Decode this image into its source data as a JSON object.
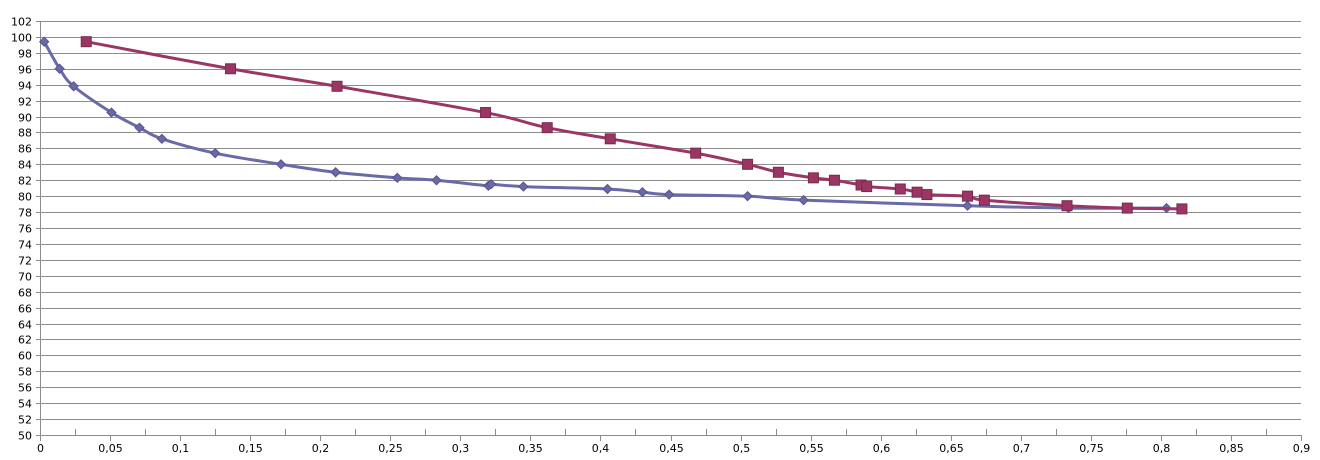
{
  "chart_data": {
    "type": "scatter",
    "title": "",
    "xlabel": "",
    "ylabel": "",
    "xlim": [
      0,
      0.9
    ],
    "ylim": [
      50,
      102
    ],
    "x_ticks": [
      "0",
      "0,05",
      "0,1",
      "0,15",
      "0,2",
      "0,25",
      "0,3",
      "0,35",
      "0,4",
      "0,45",
      "0,5",
      "0,55",
      "0,6",
      "0,65",
      "0,7",
      "0,75",
      "0,8",
      "0,85",
      "0,9"
    ],
    "x_tick_values": [
      0,
      0.05,
      0.1,
      0.15,
      0.2,
      0.25,
      0.3,
      0.35,
      0.4,
      0.45,
      0.5,
      0.55,
      0.6,
      0.65,
      0.7,
      0.75,
      0.8,
      0.85,
      0.9
    ],
    "y_ticks": [
      "50",
      "52",
      "54",
      "56",
      "58",
      "60",
      "62",
      "64",
      "66",
      "68",
      "70",
      "72",
      "74",
      "76",
      "78",
      "80",
      "82",
      "84",
      "86",
      "88",
      "90",
      "92",
      "94",
      "96",
      "98",
      "100",
      "102"
    ],
    "y_tick_values": [
      50,
      52,
      54,
      56,
      58,
      60,
      62,
      64,
      66,
      68,
      70,
      72,
      74,
      76,
      78,
      80,
      82,
      84,
      86,
      88,
      90,
      92,
      94,
      96,
      98,
      100,
      102
    ],
    "grid": "horizontal",
    "legend": "none",
    "series": [
      {
        "color": "#6a6aa8",
        "marker": "diamond",
        "points": [
          {
            "x": 0.003,
            "y": 99.4
          },
          {
            "x": 0.014,
            "y": 96.0
          },
          {
            "x": 0.024,
            "y": 93.8
          },
          {
            "x": 0.051,
            "y": 90.5
          },
          {
            "x": 0.071,
            "y": 88.6
          },
          {
            "x": 0.087,
            "y": 87.2
          },
          {
            "x": 0.125,
            "y": 85.4
          },
          {
            "x": 0.172,
            "y": 84.0
          },
          {
            "x": 0.211,
            "y": 83.0
          },
          {
            "x": 0.255,
            "y": 82.3
          },
          {
            "x": 0.283,
            "y": 82.0
          },
          {
            "x": 0.32,
            "y": 81.3
          },
          {
            "x": 0.322,
            "y": 81.5
          },
          {
            "x": 0.345,
            "y": 81.2
          },
          {
            "x": 0.405,
            "y": 80.9
          },
          {
            "x": 0.43,
            "y": 80.5
          },
          {
            "x": 0.449,
            "y": 80.2
          },
          {
            "x": 0.505,
            "y": 80.0
          },
          {
            "x": 0.545,
            "y": 79.5
          },
          {
            "x": 0.662,
            "y": 78.8
          },
          {
            "x": 0.734,
            "y": 78.5
          },
          {
            "x": 0.804,
            "y": 78.5
          }
        ]
      },
      {
        "color": "#9b3664",
        "marker": "square",
        "points": [
          {
            "x": 0.033,
            "y": 99.4
          },
          {
            "x": 0.136,
            "y": 96.0
          },
          {
            "x": 0.212,
            "y": 93.8
          },
          {
            "x": 0.318,
            "y": 90.5
          },
          {
            "x": 0.362,
            "y": 88.6
          },
          {
            "x": 0.407,
            "y": 87.2
          },
          {
            "x": 0.468,
            "y": 85.4
          },
          {
            "x": 0.505,
            "y": 84.0
          },
          {
            "x": 0.527,
            "y": 83.0
          },
          {
            "x": 0.552,
            "y": 82.3
          },
          {
            "x": 0.567,
            "y": 82.0
          },
          {
            "x": 0.586,
            "y": 81.4
          },
          {
            "x": 0.59,
            "y": 81.2
          },
          {
            "x": 0.614,
            "y": 80.9
          },
          {
            "x": 0.626,
            "y": 80.5
          },
          {
            "x": 0.633,
            "y": 80.2
          },
          {
            "x": 0.662,
            "y": 80.0
          },
          {
            "x": 0.674,
            "y": 79.5
          },
          {
            "x": 0.733,
            "y": 78.8
          },
          {
            "x": 0.776,
            "y": 78.5
          },
          {
            "x": 0.815,
            "y": 78.4
          }
        ]
      }
    ]
  }
}
